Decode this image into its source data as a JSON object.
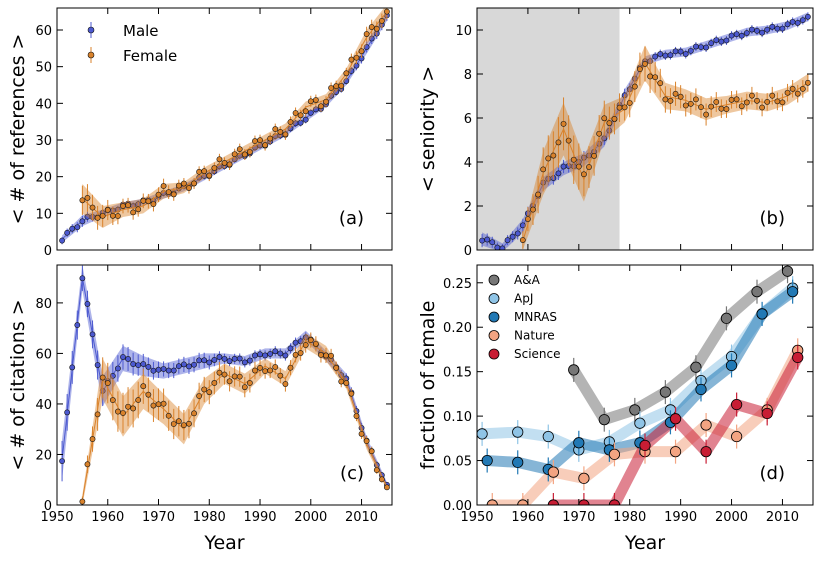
{
  "chart_data": [
    {
      "panel": "a",
      "type": "scatter",
      "panel_label": "(a)",
      "xlabel": "",
      "ylabel": "< # of references >",
      "xlim": [
        1950,
        2016
      ],
      "ylim": [
        0,
        66
      ],
      "xticks": [
        1950,
        1960,
        1970,
        1980,
        1990,
        2000,
        2010
      ],
      "yticks": [
        0,
        10,
        20,
        30,
        40,
        50,
        60
      ],
      "legend": {
        "position": "top-left",
        "entries": [
          "Male",
          "Female"
        ]
      },
      "x": [
        1951,
        1955,
        1959,
        1963,
        1967,
        1971,
        1975,
        1979,
        1983,
        1987,
        1991,
        1995,
        1999,
        2003,
        2007,
        2011,
        2015
      ],
      "series": [
        {
          "name": "Male",
          "color": "#4c59d0",
          "values": [
            3,
            8,
            10,
            12,
            13,
            15,
            17,
            20,
            23,
            26,
            29,
            32,
            36,
            40,
            46,
            55,
            64
          ],
          "err": [
            1,
            1.5,
            1,
            1,
            1,
            1,
            1,
            1,
            1,
            1,
            1,
            1,
            1,
            1,
            1,
            1.5,
            1.5
          ]
        },
        {
          "name": "Female",
          "color": "#d9822b",
          "values": [
            null,
            14,
            9,
            11,
            12,
            16,
            17,
            21,
            24,
            27,
            30,
            33,
            39,
            41,
            48,
            58,
            65
          ],
          "err": [
            0,
            4,
            3,
            2,
            2,
            2,
            1.5,
            1.5,
            1.5,
            1.5,
            1.5,
            1.5,
            1.5,
            1.5,
            1.5,
            2,
            2
          ]
        }
      ]
    },
    {
      "panel": "b",
      "type": "scatter",
      "panel_label": "(b)",
      "xlabel": "",
      "ylabel": "< seniority >",
      "xlim": [
        1950,
        2016
      ],
      "ylim": [
        0,
        11
      ],
      "xticks": [
        1950,
        1960,
        1970,
        1980,
        1990,
        2000,
        2010
      ],
      "yticks": [
        0,
        2,
        4,
        6,
        8,
        10
      ],
      "shaded_region": [
        1950,
        1978
      ],
      "x": [
        1951,
        1955,
        1959,
        1963,
        1967,
        1971,
        1975,
        1979,
        1983,
        1987,
        1991,
        1995,
        1999,
        2003,
        2007,
        2011,
        2015
      ],
      "series": [
        {
          "name": "Male",
          "color": "#4c59d0",
          "values": [
            0.5,
            0.1,
            1.1,
            3.0,
            3.7,
            4.1,
            5.0,
            7.0,
            8.6,
            8.9,
            9.0,
            9.3,
            9.6,
            9.9,
            10.0,
            10.2,
            10.6
          ],
          "err": [
            0.3,
            0.2,
            0.3,
            0.3,
            0.3,
            0.3,
            0.3,
            0.3,
            0.2,
            0.2,
            0.2,
            0.2,
            0.2,
            0.2,
            0.2,
            0.2,
            0.2
          ]
        },
        {
          "name": "Female",
          "color": "#d9822b",
          "values": [
            null,
            null,
            0.4,
            3.5,
            5.5,
            3.2,
            5.8,
            6.4,
            8.5,
            7.0,
            6.8,
            6.4,
            6.6,
            6.8,
            6.7,
            7.0,
            7.6
          ],
          "err": [
            0,
            0,
            0.4,
            1.0,
            1.2,
            1.0,
            0.8,
            0.6,
            0.8,
            0.6,
            0.5,
            0.5,
            0.4,
            0.4,
            0.4,
            0.4,
            0.4
          ]
        }
      ]
    },
    {
      "panel": "c",
      "type": "scatter",
      "panel_label": "(c)",
      "xlabel": "Year",
      "ylabel": "< # of citations >",
      "xlim": [
        1950,
        2016
      ],
      "ylim": [
        0,
        95
      ],
      "xticks": [
        1950,
        1960,
        1970,
        1980,
        1990,
        2000,
        2010
      ],
      "yticks": [
        0,
        20,
        40,
        60,
        80
      ],
      "x": [
        1951,
        1955,
        1959,
        1963,
        1967,
        1971,
        1975,
        1979,
        1983,
        1987,
        1991,
        1995,
        1999,
        2003,
        2007,
        2011,
        2015
      ],
      "series": [
        {
          "name": "Male",
          "color": "#4c59d0",
          "values": [
            18,
            90,
            45,
            58,
            55,
            53,
            55,
            57,
            58,
            57,
            60,
            60,
            67,
            59,
            50,
            25,
            8
          ],
          "err": [
            8,
            5,
            6,
            5,
            4,
            3,
            3,
            3,
            2,
            2,
            2,
            2,
            2,
            2,
            2,
            2,
            1
          ]
        },
        {
          "name": "Female",
          "color": "#d9822b",
          "values": [
            null,
            2,
            50,
            35,
            45,
            38,
            30,
            45,
            52,
            48,
            55,
            50,
            65,
            60,
            48,
            24,
            7
          ],
          "err": [
            0,
            2,
            8,
            8,
            7,
            6,
            6,
            5,
            4,
            4,
            3,
            3,
            3,
            3,
            2,
            2,
            1
          ]
        }
      ]
    },
    {
      "panel": "d",
      "type": "line",
      "panel_label": "(d)",
      "xlabel": "Year",
      "ylabel": "fraction of female",
      "xlim": [
        1950,
        2016
      ],
      "ylim": [
        0,
        0.27
      ],
      "xticks": [
        1950,
        1960,
        1970,
        1980,
        1990,
        2000,
        2010
      ],
      "yticks": [
        0.0,
        0.05,
        0.1,
        0.15,
        0.2,
        0.25
      ],
      "legend": {
        "position": "top-left",
        "entries": [
          "A&A",
          "ApJ",
          "MNRAS",
          "Nature",
          "Science"
        ]
      },
      "series": [
        {
          "name": "A&A",
          "color": "#777777",
          "x": [
            1969,
            1975,
            1981,
            1987,
            1993,
            1999,
            2005,
            2011
          ],
          "values": [
            0.152,
            0.096,
            0.107,
            0.127,
            0.155,
            0.21,
            0.24,
            0.263
          ]
        },
        {
          "name": "ApJ",
          "color": "#8fc4e6",
          "x": [
            1951,
            1958,
            1964,
            1970,
            1976,
            1982,
            1988,
            1994,
            2000,
            2006,
            2012
          ],
          "values": [
            0.08,
            0.082,
            0.077,
            0.062,
            0.071,
            0.092,
            0.107,
            0.14,
            0.167,
            0.215,
            0.244
          ]
        },
        {
          "name": "MNRAS",
          "color": "#2279b5",
          "x": [
            1952,
            1958,
            1964,
            1970,
            1976,
            1982,
            1988,
            1994,
            2000,
            2006,
            2012
          ],
          "values": [
            0.05,
            0.048,
            0.04,
            0.07,
            0.062,
            0.07,
            0.093,
            0.13,
            0.157,
            0.215,
            0.24
          ]
        },
        {
          "name": "Nature",
          "color": "#f3a482",
          "x": [
            1953,
            1959,
            1965,
            1971,
            1977,
            1983,
            1989,
            1995,
            2001,
            2007,
            2013
          ],
          "values": [
            0.0,
            0.0,
            0.037,
            0.03,
            0.057,
            0.06,
            0.06,
            0.09,
            0.077,
            0.107,
            0.174
          ]
        },
        {
          "name": "Science",
          "color": "#c81d34",
          "x": [
            1965,
            1971,
            1977,
            1983,
            1989,
            1995,
            2001,
            2007,
            2013
          ],
          "values": [
            0.0,
            0.0,
            0.0,
            0.067,
            0.097,
            0.06,
            0.113,
            0.103,
            0.166
          ]
        }
      ]
    }
  ]
}
